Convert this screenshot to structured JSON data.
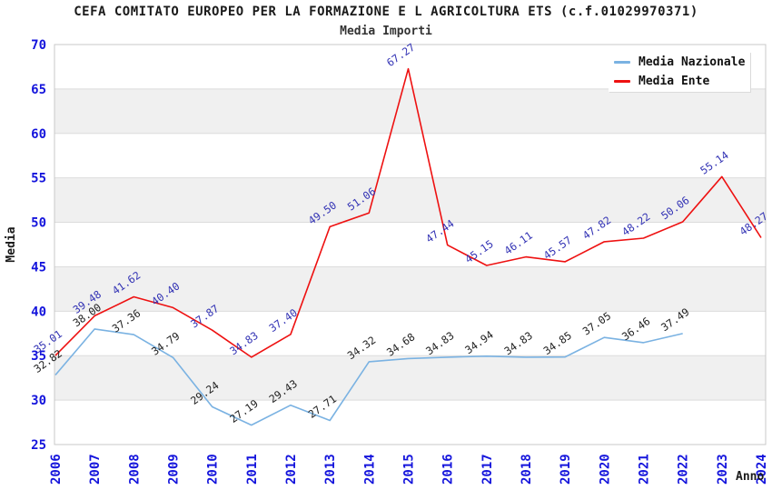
{
  "header": {
    "title": "CEFA COMITATO EUROPEO PER LA FORMAZIONE E L AGRICOLTURA ETS (c.f.01029970371)",
    "subtitle": "Media Importi"
  },
  "chart_data": {
    "type": "line",
    "title": "CEFA COMITATO EUROPEO PER LA FORMAZIONE E L AGRICOLTURA ETS (c.f.01029970371)",
    "subtitle": "Media Importi",
    "xlabel": "Anno",
    "ylabel": "Media",
    "ylim": [
      25,
      70
    ],
    "ytick_step": 5,
    "grid": true,
    "band_fill": "zebra-horizontal",
    "legend_position": "top-right",
    "x": [
      2006,
      2007,
      2008,
      2009,
      2010,
      2011,
      2012,
      2013,
      2014,
      2015,
      2016,
      2017,
      2018,
      2019,
      2020,
      2021,
      2022,
      2023,
      2024
    ],
    "series": [
      {
        "name": "Media Nazionale",
        "color": "#7ab2e2",
        "label_color": "#1f1f1f",
        "values": [
          32.82,
          38.0,
          37.36,
          34.79,
          29.24,
          27.19,
          29.43,
          27.71,
          34.32,
          34.68,
          34.83,
          34.94,
          34.83,
          34.85,
          37.05,
          36.46,
          37.49,
          null,
          null
        ]
      },
      {
        "name": "Media Ente",
        "color": "#ee1111",
        "label_color": "#3232b4",
        "values": [
          35.01,
          39.48,
          41.62,
          40.4,
          37.87,
          34.83,
          37.4,
          49.5,
          51.06,
          67.27,
          47.44,
          45.15,
          46.11,
          45.57,
          47.82,
          48.22,
          50.06,
          55.14,
          48.27
        ]
      }
    ]
  },
  "style": {
    "tick_color": "#1414dc",
    "axis_label_color": "#1a1a1a",
    "band_color": "#f0f0f0",
    "grid_color": "#dcdcdc",
    "frame_color": "#c8c8c8",
    "background": "#ffffff"
  }
}
